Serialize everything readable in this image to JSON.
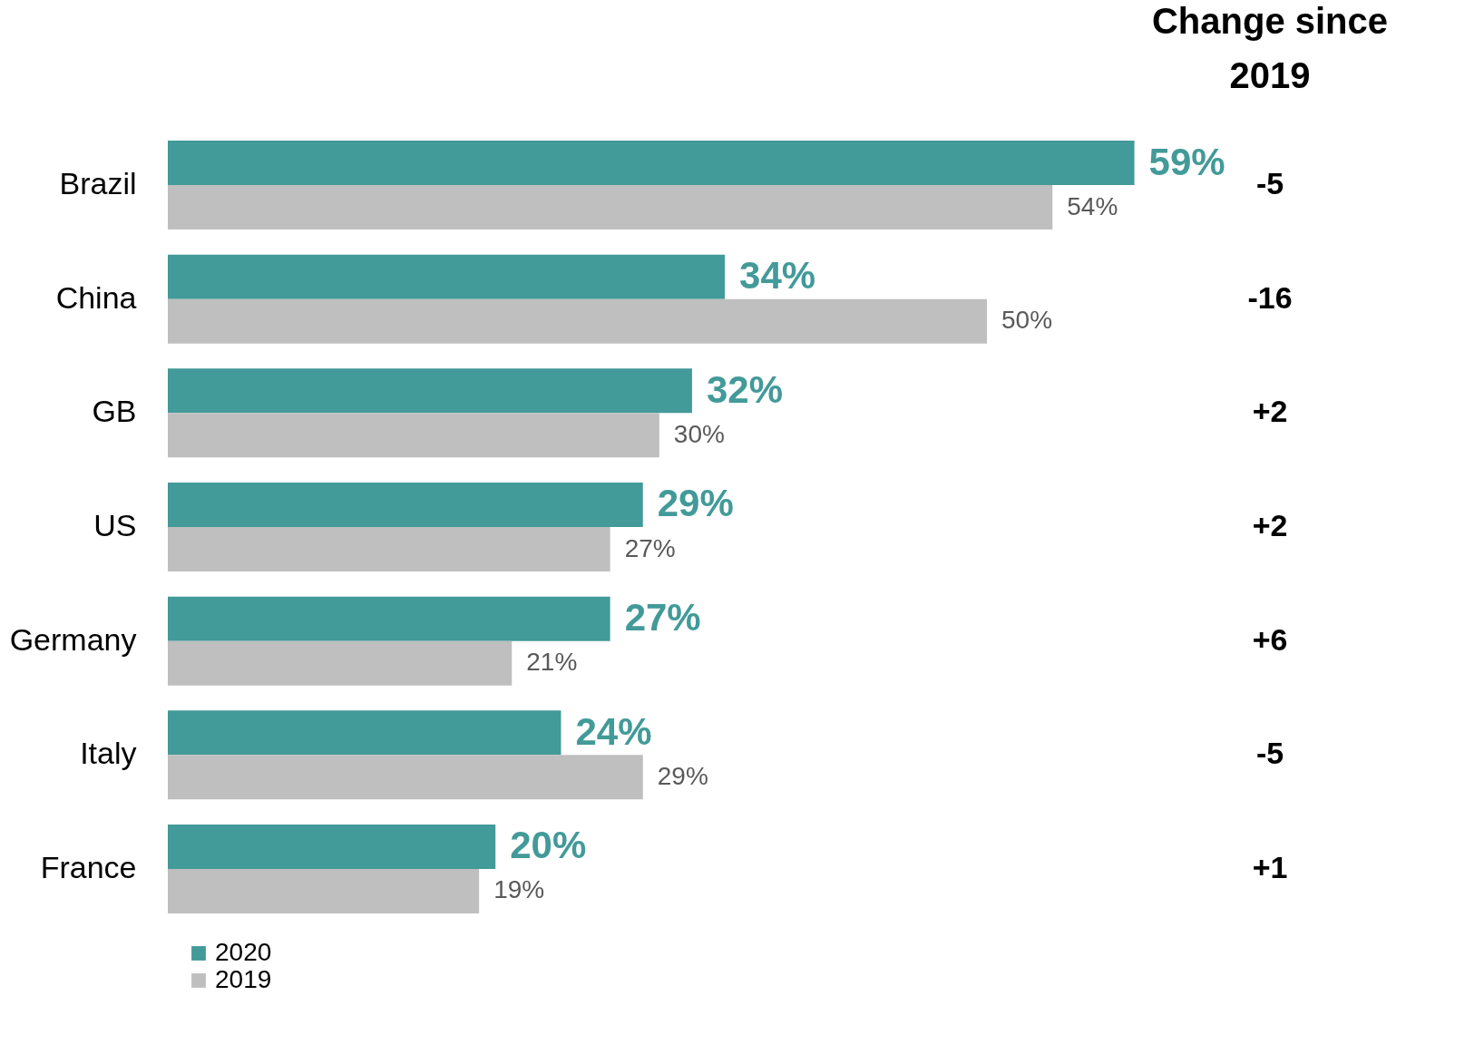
{
  "chart_data": {
    "type": "bar",
    "orientation": "horizontal",
    "categories": [
      "Brazil",
      "China",
      "GB",
      "US",
      "Germany",
      "Italy",
      "France"
    ],
    "series": [
      {
        "name": "2020",
        "color": "#429a99",
        "values": [
          59,
          34,
          32,
          29,
          27,
          24,
          20
        ],
        "value_labels": [
          "59%",
          "34%",
          "32%",
          "29%",
          "27%",
          "24%",
          "20%"
        ]
      },
      {
        "name": "2019",
        "color": "#bfbfbf",
        "values": [
          54,
          50,
          30,
          27,
          21,
          29,
          19
        ],
        "value_labels": [
          "54%",
          "50%",
          "30%",
          "27%",
          "21%",
          "29%",
          "19%"
        ]
      }
    ],
    "annotations": [
      "Change since 2019",
      "-5",
      "-16",
      "+2",
      "+2",
      "+6",
      "-5",
      "+1"
    ],
    "legend": "bottom left",
    "grid": false
  }
}
